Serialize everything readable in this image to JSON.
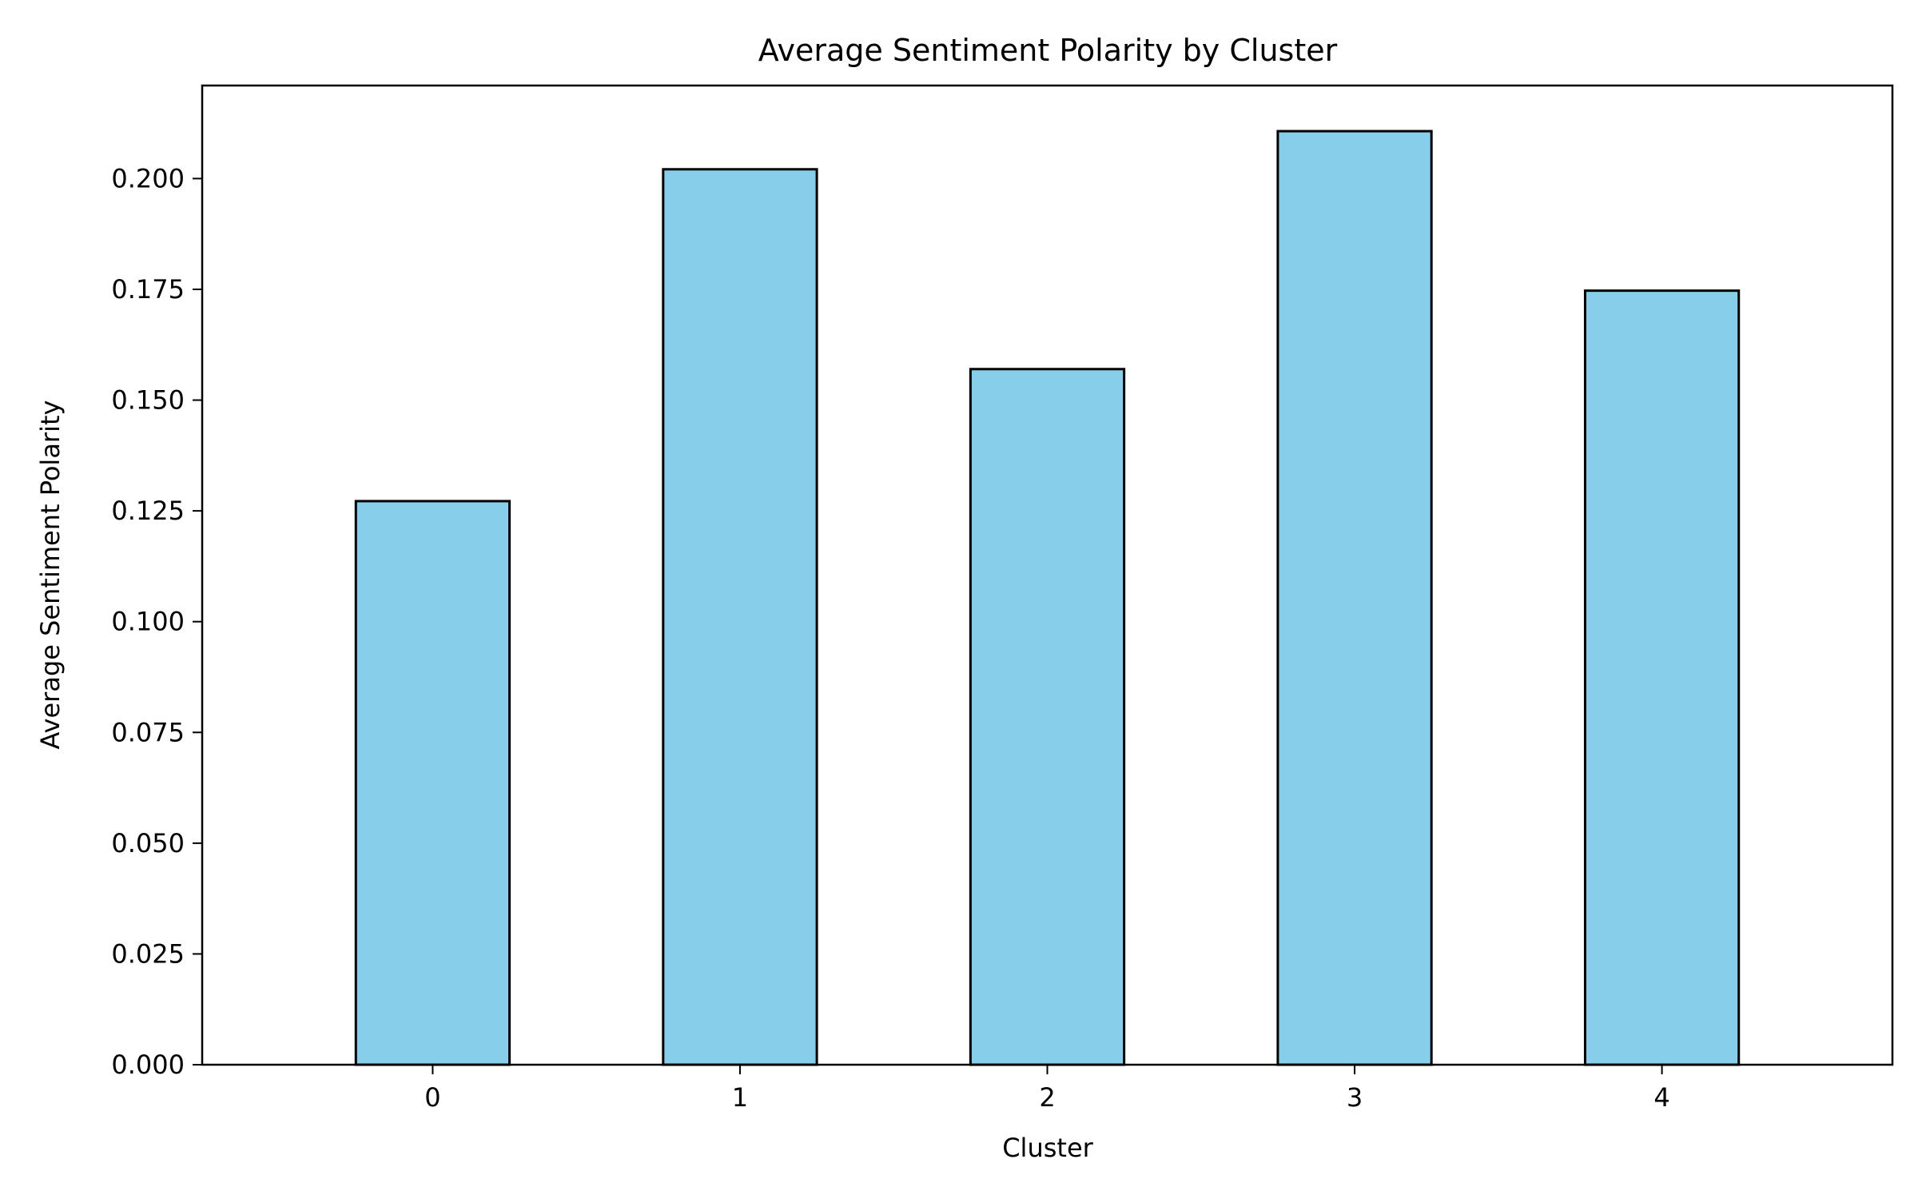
{
  "chart_data": {
    "type": "bar",
    "title": "Average Sentiment Polarity by Cluster",
    "xlabel": "Cluster",
    "ylabel": "Average Sentiment Polarity",
    "categories": [
      "0",
      "1",
      "2",
      "3",
      "4"
    ],
    "values": [
      0.1272,
      0.2021,
      0.157,
      0.2107,
      0.1747
    ],
    "ylim": [
      0,
      0.221
    ],
    "yticks": [
      0.0,
      0.025,
      0.05,
      0.075,
      0.1,
      0.125,
      0.15,
      0.175,
      0.2
    ],
    "ytick_labels": [
      "0.000",
      "0.025",
      "0.050",
      "0.075",
      "0.100",
      "0.125",
      "0.150",
      "0.175",
      "0.200"
    ],
    "grid": false,
    "legend": "none",
    "bar_color": "#87CEEB",
    "edge_color": "#000000"
  }
}
